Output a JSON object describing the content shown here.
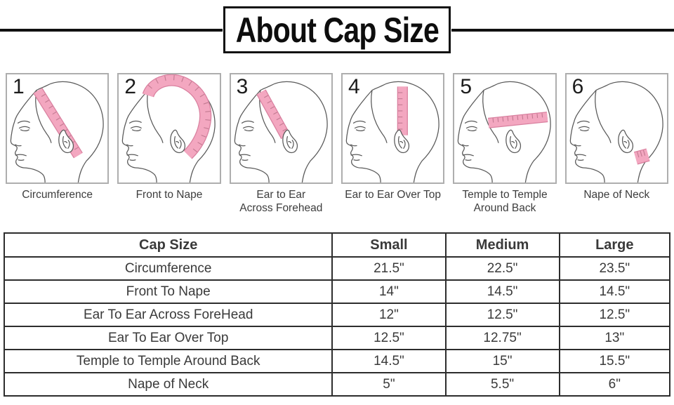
{
  "title": {
    "text": "About Cap Size"
  },
  "diagrams": [
    {
      "number": "1",
      "label": "Circumference"
    },
    {
      "number": "2",
      "label": "Front to Nape"
    },
    {
      "number": "3",
      "label": "Ear to Ear",
      "label2": "Across Forehead"
    },
    {
      "number": "4",
      "label": "Ear to Ear Over Top"
    },
    {
      "number": "5",
      "label": "Temple to Temple",
      "label2": "Around Back"
    },
    {
      "number": "6",
      "label": "Nape of Neck"
    }
  ],
  "table": {
    "headers": [
      "Cap Size",
      "Small",
      "Medium",
      "Large"
    ],
    "rows": [
      [
        "Circumference",
        "21.5\"",
        "22.5\"",
        "23.5\""
      ],
      [
        "Front To Nape",
        "14\"",
        "14.5\"",
        "14.5\""
      ],
      [
        "Ear To Ear Across ForeHead",
        "12\"",
        "12.5\"",
        "12.5\""
      ],
      [
        "Ear To Ear Over Top",
        "12.5\"",
        "12.75\"",
        "13\""
      ],
      [
        "Temple to Temple Around Back",
        "14.5\"",
        "15\"",
        "15.5\""
      ],
      [
        "Nape of Neck",
        "5\"",
        "5.5\"",
        "6\""
      ]
    ]
  },
  "colors": {
    "tape_fill": "#f3a7c0",
    "tape_edge": "#d9809f",
    "tape_tick": "#c27a91",
    "head_outline": "#5a5a5a",
    "banner_ink": "#111111",
    "table_border": "#2d2d2d",
    "text": "#3a3a3a"
  }
}
